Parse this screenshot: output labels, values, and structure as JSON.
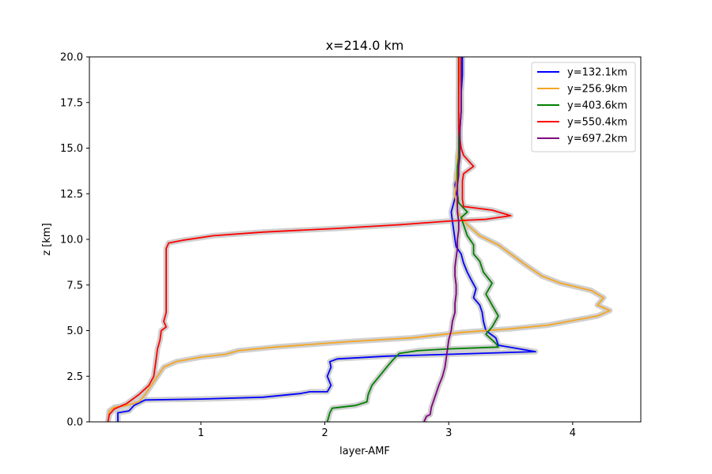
{
  "chart_data": {
    "type": "line",
    "title": "x=214.0 km",
    "xlabel": "layer-AMF",
    "ylabel": "z [km]",
    "xlim": [
      0.1,
      4.55
    ],
    "ylim": [
      0,
      20
    ],
    "xticks": [
      1,
      2,
      3,
      4
    ],
    "yticks": [
      0.0,
      2.5,
      5.0,
      7.5,
      10.0,
      12.5,
      15.0,
      17.5,
      20.0
    ],
    "legend_position": "top-right",
    "uncertainty_band": {
      "color": "#c8c8c8",
      "description": "grey shaded uncertainty envelope around each profile"
    },
    "series": [
      {
        "name": "y=132.1km",
        "color": "#0000ff",
        "points": [
          [
            0.33,
            0
          ],
          [
            0.33,
            0.5
          ],
          [
            0.42,
            0.6
          ],
          [
            0.46,
            0.9
          ],
          [
            0.52,
            1.1
          ],
          [
            0.55,
            1.2
          ],
          [
            1.0,
            1.25
          ],
          [
            1.5,
            1.35
          ],
          [
            1.8,
            1.55
          ],
          [
            1.88,
            1.65
          ],
          [
            2.02,
            1.65
          ],
          [
            2.05,
            2.0
          ],
          [
            2.02,
            2.5
          ],
          [
            2.05,
            3.0
          ],
          [
            2.04,
            3.3
          ],
          [
            2.1,
            3.45
          ],
          [
            2.5,
            3.6
          ],
          [
            3.0,
            3.7
          ],
          [
            3.7,
            3.85
          ],
          [
            3.4,
            4.2
          ],
          [
            3.38,
            4.6
          ],
          [
            3.3,
            5.0
          ],
          [
            3.28,
            5.5
          ],
          [
            3.27,
            6.0
          ],
          [
            3.25,
            6.4
          ],
          [
            3.2,
            6.8
          ],
          [
            3.22,
            7.3
          ],
          [
            3.18,
            7.8
          ],
          [
            3.15,
            8.2
          ],
          [
            3.12,
            8.7
          ],
          [
            3.1,
            9.2
          ],
          [
            3.06,
            9.6
          ],
          [
            3.05,
            10.0
          ],
          [
            3.04,
            10.5
          ],
          [
            3.03,
            11.0
          ],
          [
            3.02,
            11.5
          ],
          [
            3.04,
            12.0
          ],
          [
            3.06,
            12.5
          ],
          [
            3.05,
            13.0
          ],
          [
            3.07,
            13.5
          ],
          [
            3.08,
            14.0
          ],
          [
            3.08,
            14.5
          ],
          [
            3.09,
            15.0
          ],
          [
            3.09,
            16.0
          ],
          [
            3.1,
            17.0
          ],
          [
            3.1,
            18.0
          ],
          [
            3.11,
            19.0
          ],
          [
            3.11,
            20.0
          ]
        ]
      },
      {
        "name": "y=256.9km",
        "color": "#f5a623",
        "points": [
          [
            0.25,
            0
          ],
          [
            0.26,
            0.6
          ],
          [
            0.3,
            0.8
          ],
          [
            0.4,
            0.9
          ],
          [
            0.5,
            1.1
          ],
          [
            0.55,
            1.5
          ],
          [
            0.6,
            2.0
          ],
          [
            0.65,
            2.5
          ],
          [
            0.7,
            3.0
          ],
          [
            0.8,
            3.3
          ],
          [
            1.0,
            3.55
          ],
          [
            1.2,
            3.7
          ],
          [
            1.3,
            3.9
          ],
          [
            1.6,
            4.1
          ],
          [
            2.2,
            4.4
          ],
          [
            2.7,
            4.6
          ],
          [
            3.1,
            4.9
          ],
          [
            3.5,
            5.1
          ],
          [
            3.8,
            5.3
          ],
          [
            4.2,
            5.8
          ],
          [
            4.3,
            6.1
          ],
          [
            4.2,
            6.4
          ],
          [
            4.25,
            6.8
          ],
          [
            4.15,
            7.2
          ],
          [
            3.9,
            7.6
          ],
          [
            3.75,
            8.0
          ],
          [
            3.62,
            8.6
          ],
          [
            3.5,
            9.2
          ],
          [
            3.4,
            9.7
          ],
          [
            3.25,
            10.2
          ],
          [
            3.15,
            10.8
          ],
          [
            3.08,
            11.4
          ],
          [
            3.06,
            12.0
          ],
          [
            3.05,
            12.5
          ],
          [
            3.06,
            13.0
          ],
          [
            3.06,
            13.5
          ],
          [
            3.07,
            14.0
          ],
          [
            3.07,
            14.5
          ],
          [
            3.08,
            15.0
          ],
          [
            3.08,
            16.0
          ],
          [
            3.08,
            17.0
          ],
          [
            3.08,
            18.0
          ],
          [
            3.09,
            19.0
          ],
          [
            3.09,
            20.0
          ]
        ]
      },
      {
        "name": "y=403.6km",
        "color": "#008000",
        "points": [
          [
            2.02,
            0
          ],
          [
            2.04,
            0.5
          ],
          [
            2.06,
            0.75
          ],
          [
            2.25,
            0.9
          ],
          [
            2.34,
            1.1
          ],
          [
            2.35,
            1.5
          ],
          [
            2.38,
            2.0
          ],
          [
            2.44,
            2.5
          ],
          [
            2.5,
            3.0
          ],
          [
            2.55,
            3.4
          ],
          [
            2.6,
            3.75
          ],
          [
            2.75,
            3.9
          ],
          [
            3.0,
            4.0
          ],
          [
            3.4,
            4.1
          ],
          [
            3.38,
            4.3
          ],
          [
            3.3,
            4.8
          ],
          [
            3.35,
            5.2
          ],
          [
            3.4,
            5.8
          ],
          [
            3.35,
            6.4
          ],
          [
            3.3,
            7.0
          ],
          [
            3.35,
            7.6
          ],
          [
            3.28,
            8.2
          ],
          [
            3.25,
            8.8
          ],
          [
            3.2,
            9.2
          ],
          [
            3.2,
            9.7
          ],
          [
            3.15,
            10.2
          ],
          [
            3.12,
            10.8
          ],
          [
            3.1,
            11.2
          ],
          [
            3.15,
            11.5
          ],
          [
            3.08,
            12.0
          ],
          [
            3.07,
            12.5
          ],
          [
            3.07,
            13.0
          ],
          [
            3.07,
            13.5
          ],
          [
            3.07,
            14.0
          ],
          [
            3.08,
            14.5
          ],
          [
            3.08,
            15.0
          ],
          [
            3.08,
            16.0
          ],
          [
            3.08,
            17.0
          ],
          [
            3.08,
            18.0
          ],
          [
            3.08,
            19.0
          ],
          [
            3.08,
            20.0
          ]
        ]
      },
      {
        "name": "y=550.4km",
        "color": "#ff0000",
        "points": [
          [
            0.25,
            0
          ],
          [
            0.26,
            0.4
          ],
          [
            0.3,
            0.7
          ],
          [
            0.4,
            1.0
          ],
          [
            0.5,
            1.5
          ],
          [
            0.58,
            2.0
          ],
          [
            0.62,
            2.5
          ],
          [
            0.63,
            3.0
          ],
          [
            0.64,
            3.5
          ],
          [
            0.65,
            4.0
          ],
          [
            0.67,
            4.5
          ],
          [
            0.68,
            5.0
          ],
          [
            0.72,
            5.2
          ],
          [
            0.7,
            5.5
          ],
          [
            0.72,
            6.0
          ],
          [
            0.72,
            7.0
          ],
          [
            0.72,
            8.0
          ],
          [
            0.72,
            8.8
          ],
          [
            0.72,
            9.5
          ],
          [
            0.74,
            9.8
          ],
          [
            0.85,
            9.95
          ],
          [
            1.1,
            10.2
          ],
          [
            1.5,
            10.4
          ],
          [
            2.1,
            10.6
          ],
          [
            2.6,
            10.8
          ],
          [
            3.0,
            11.0
          ],
          [
            3.3,
            11.1
          ],
          [
            3.5,
            11.3
          ],
          [
            3.35,
            11.6
          ],
          [
            3.12,
            11.8
          ],
          [
            3.11,
            12.2
          ],
          [
            3.11,
            12.7
          ],
          [
            3.11,
            13.2
          ],
          [
            3.12,
            13.6
          ],
          [
            3.2,
            14.0
          ],
          [
            3.12,
            14.6
          ],
          [
            3.1,
            15.0
          ],
          [
            3.08,
            16.0
          ],
          [
            3.08,
            17.0
          ],
          [
            3.08,
            18.0
          ],
          [
            3.08,
            19.0
          ],
          [
            3.08,
            20.0
          ]
        ]
      },
      {
        "name": "y=697.2km",
        "color": "#800080",
        "points": [
          [
            2.8,
            0
          ],
          [
            2.82,
            0.3
          ],
          [
            2.85,
            0.4
          ],
          [
            2.86,
            0.8
          ],
          [
            2.88,
            1.2
          ],
          [
            2.9,
            1.6
          ],
          [
            2.92,
            2.0
          ],
          [
            2.95,
            2.5
          ],
          [
            2.97,
            3.0
          ],
          [
            2.98,
            3.5
          ],
          [
            2.99,
            4.0
          ],
          [
            3.0,
            4.5
          ],
          [
            3.02,
            5.0
          ],
          [
            3.03,
            5.5
          ],
          [
            3.05,
            6.0
          ],
          [
            3.05,
            6.5
          ],
          [
            3.06,
            7.0
          ],
          [
            3.06,
            7.5
          ],
          [
            3.05,
            8.0
          ],
          [
            3.05,
            8.5
          ],
          [
            3.06,
            9.0
          ],
          [
            3.07,
            9.5
          ],
          [
            3.07,
            10.0
          ],
          [
            3.08,
            10.5
          ],
          [
            3.08,
            11.0
          ],
          [
            3.07,
            11.5
          ],
          [
            3.07,
            12.0
          ],
          [
            3.07,
            12.5
          ],
          [
            3.07,
            13.0
          ],
          [
            3.08,
            13.5
          ],
          [
            3.08,
            14.0
          ],
          [
            3.09,
            14.5
          ],
          [
            3.09,
            15.0
          ],
          [
            3.09,
            16.0
          ],
          [
            3.1,
            17.0
          ],
          [
            3.1,
            18.0
          ],
          [
            3.1,
            19.0
          ],
          [
            3.1,
            20.0
          ]
        ]
      }
    ]
  }
}
